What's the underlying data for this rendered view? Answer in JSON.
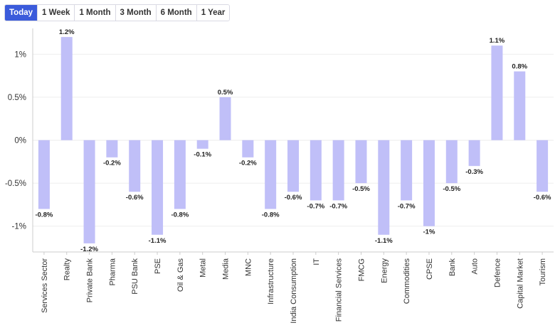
{
  "tabs": [
    {
      "label": "Today",
      "active": true
    },
    {
      "label": "1 Week",
      "active": false
    },
    {
      "label": "1 Month",
      "active": false
    },
    {
      "label": "3 Month",
      "active": false
    },
    {
      "label": "6 Month",
      "active": false
    },
    {
      "label": "1 Year",
      "active": false
    }
  ],
  "colors": {
    "bar": "#c0bff8",
    "accent": "#3b5bdb",
    "grid": "#eeeeee"
  },
  "chart_data": {
    "type": "bar",
    "title": "",
    "xlabel": "",
    "ylabel": "",
    "ylim": [
      -1.3,
      1.3
    ],
    "yticks": [
      1,
      0.5,
      0,
      -0.5,
      -1
    ],
    "ytick_labels": [
      "1%",
      "0.5%",
      "0%",
      "-0.5%",
      "-1%"
    ],
    "categories": [
      "Services Sector",
      "Realty",
      "Private Bank",
      "Pharma",
      "PSU Bank",
      "PSE",
      "Oil & Gas",
      "Metal",
      "Media",
      "MNC",
      "Infrastructure",
      "India Consumption",
      "IT",
      "Financial Services",
      "FMCG",
      "Energy",
      "Commodities",
      "CPSE",
      "Bank",
      "Auto",
      "Defence",
      "Capital Market",
      "Tourism"
    ],
    "values": [
      -0.8,
      1.2,
      -1.2,
      -0.2,
      -0.6,
      -1.1,
      -0.8,
      -0.1,
      0.5,
      -0.2,
      -0.8,
      -0.6,
      -0.7,
      -0.7,
      -0.5,
      -1.1,
      -0.7,
      -1,
      -0.5,
      -0.3,
      1.1,
      0.8,
      -0.6
    ],
    "data_labels": [
      "-0.8%",
      "1.2%",
      "-1.2%",
      "-0.2%",
      "-0.6%",
      "-1.1%",
      "-0.8%",
      "-0.1%",
      "0.5%",
      "-0.2%",
      "-0.8%",
      "-0.6%",
      "-0.7%",
      "-0.7%",
      "-0.5%",
      "-1.1%",
      "-0.7%",
      "-1%",
      "-0.5%",
      "-0.3%",
      "1.1%",
      "0.8%",
      "-0.6%"
    ],
    "grid": true,
    "legend": "none"
  }
}
